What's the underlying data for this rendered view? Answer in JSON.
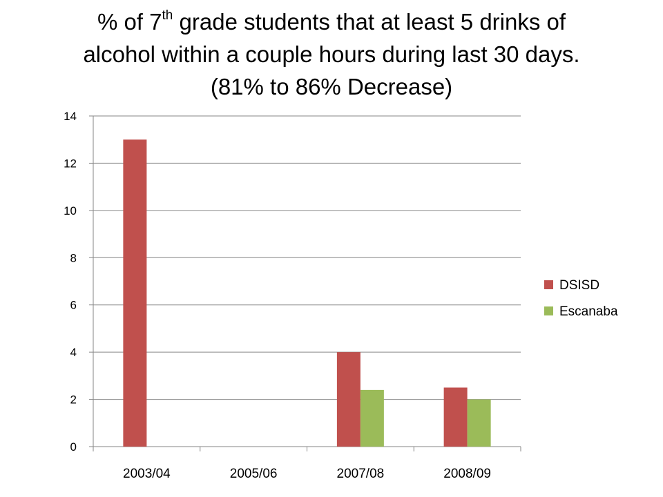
{
  "title": {
    "line1_pre": "% of 7",
    "line1_sup": "th",
    "line1_post": " grade students that at least 5 drinks of",
    "line2": "alcohol within a couple hours during last 30 days.",
    "line3": "(81% to 86% Decrease)"
  },
  "colors": {
    "DSISD": "#c0504d",
    "Escanaba": "#9bbb59",
    "grid": "#868686",
    "axis": "#868686"
  },
  "chart_data": {
    "type": "bar",
    "title": "% of 7th grade students that at least 5 drinks of alcohol within a couple hours during last 30 days. (81% to 86% Decrease)",
    "categories": [
      "2003/04",
      "2005/06",
      "2007/08",
      "2008/09"
    ],
    "series": [
      {
        "name": "DSISD",
        "values": [
          13,
          null,
          4,
          2.5
        ]
      },
      {
        "name": "Escanaba",
        "values": [
          null,
          null,
          2.4,
          2
        ]
      }
    ],
    "ylim": [
      0,
      14
    ],
    "yticks": [
      0,
      2,
      4,
      6,
      8,
      10,
      12,
      14
    ],
    "xlabel": "",
    "ylabel": "",
    "grid": true,
    "legend": "right"
  }
}
